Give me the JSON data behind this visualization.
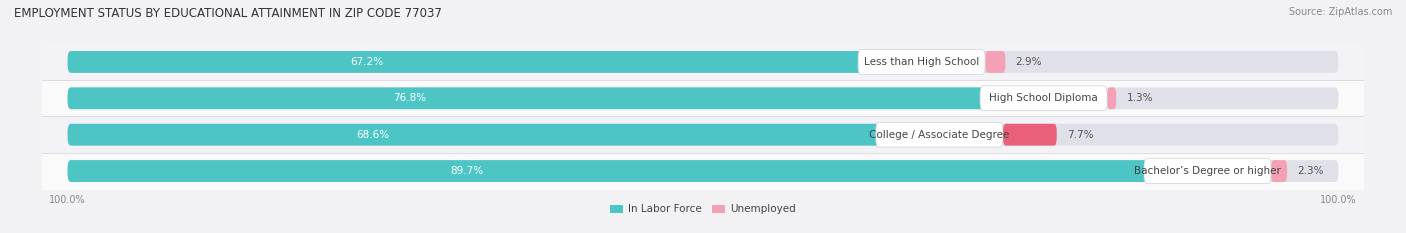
{
  "title": "EMPLOYMENT STATUS BY EDUCATIONAL ATTAINMENT IN ZIP CODE 77037",
  "source": "Source: ZipAtlas.com",
  "categories": [
    "Less than High School",
    "High School Diploma",
    "College / Associate Degree",
    "Bachelor’s Degree or higher"
  ],
  "labor_force": [
    67.2,
    76.8,
    68.6,
    89.7
  ],
  "unemployed": [
    2.9,
    1.3,
    7.7,
    2.3
  ],
  "labor_force_color": "#4dc5c5",
  "unemployed_color_light": "#f4a0b5",
  "unemployed_color_dark": "#e8607a",
  "bar_bg_color": "#e0e0e8",
  "row_bg_odd": "#f2f2f7",
  "row_bg_even": "#fafafa",
  "label_box_color": "#ffffff",
  "label_text_color": "#444444",
  "labor_value_color": "#ffffff",
  "pct_text_color": "#555555",
  "title_fontsize": 8.5,
  "source_fontsize": 7,
  "cat_fontsize": 7.5,
  "value_fontsize": 7.5,
  "axis_label_fontsize": 7,
  "x_left_label": "100.0%",
  "x_right_label": "100.0%",
  "legend_labor_label": "In Labor Force",
  "legend_unemployed_label": "Unemployed",
  "bar_height": 0.6,
  "total_bar_width": 100.0
}
